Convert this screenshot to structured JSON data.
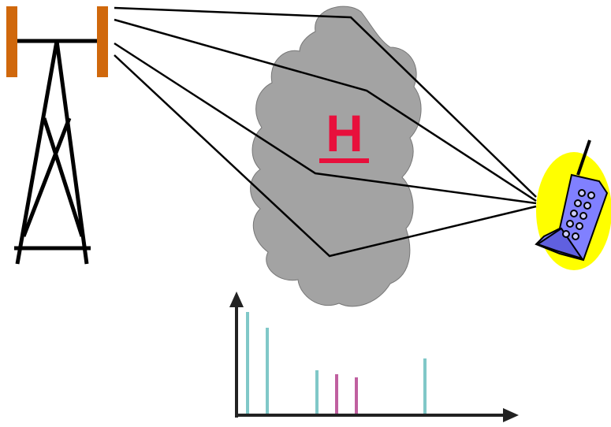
{
  "channel_label": "H"
}
